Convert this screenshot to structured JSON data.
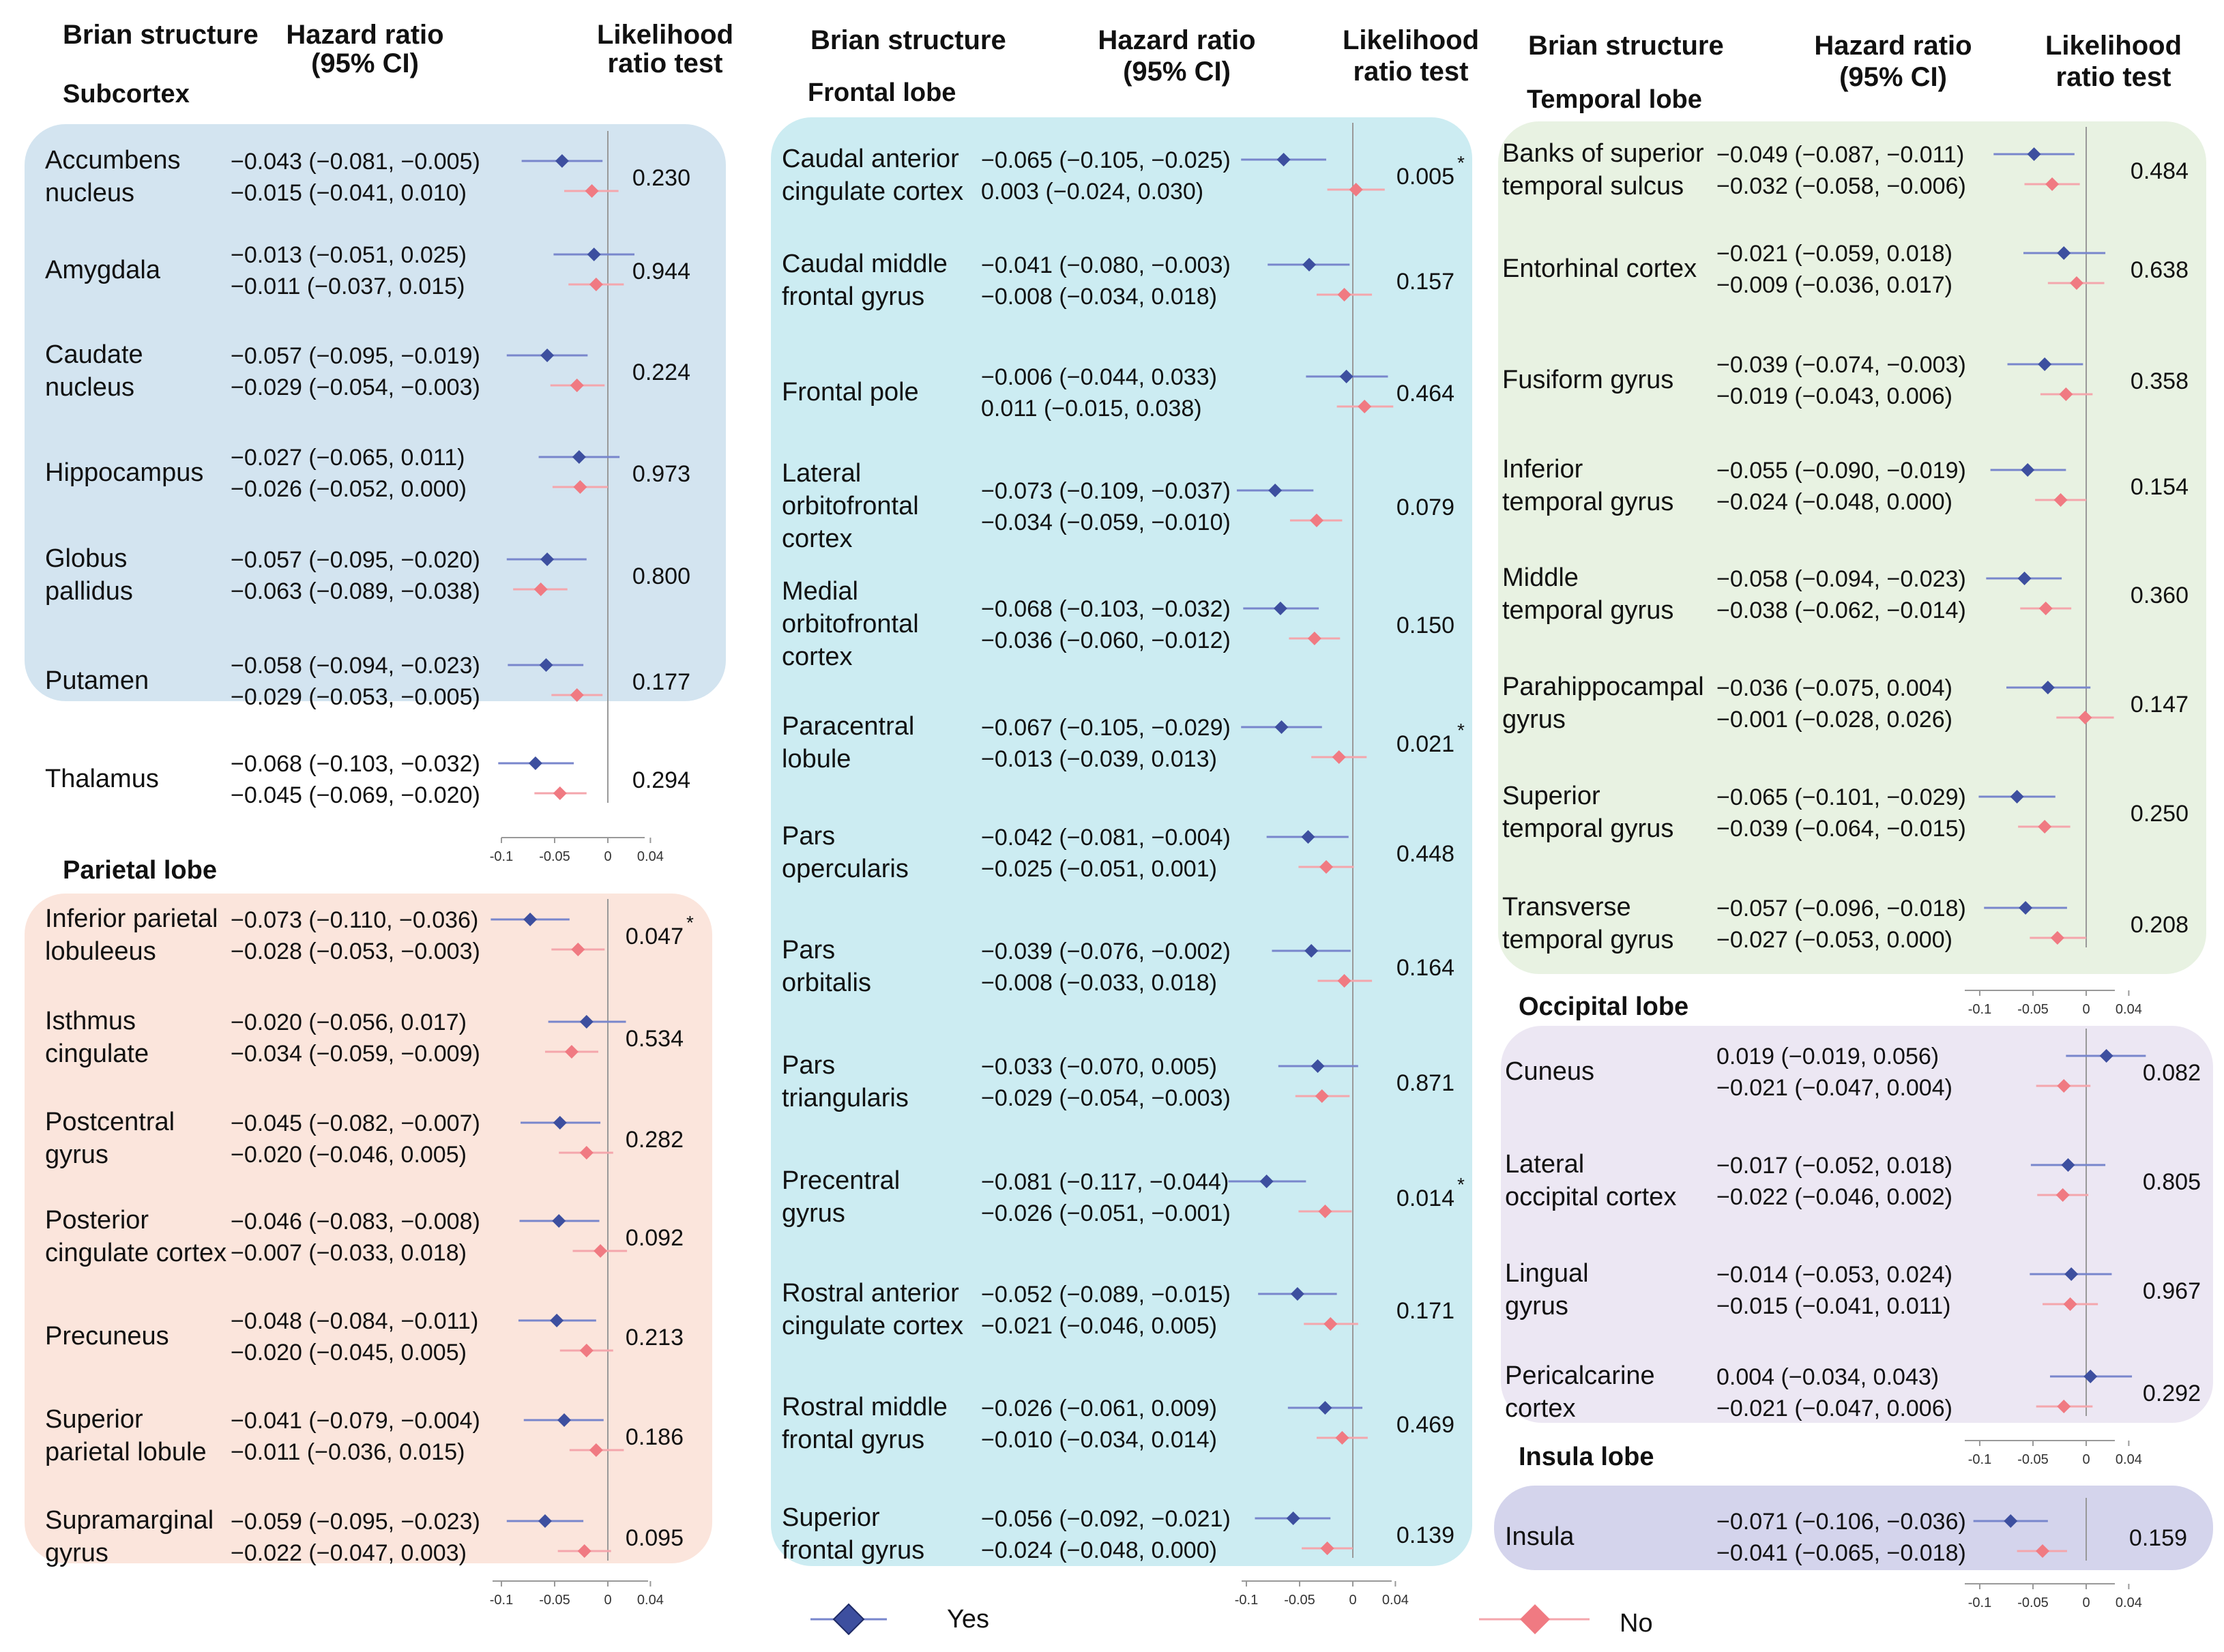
{
  "headers": {
    "structure": "Brian structure",
    "hr_line1": "Hazard ratio",
    "hr_line2": "(95% CI)",
    "lrt_line1": "Likelihood",
    "lrt_line2": "ratio test"
  },
  "legend": {
    "yes": "Yes",
    "no": "No"
  },
  "colors": {
    "yes": "#3d4f9f",
    "yes_line": "#7886cc",
    "no": "#f07a82",
    "no_line": "#f4a6ac",
    "axis": "#999999"
  },
  "axis": {
    "ticks": [
      -0.1,
      -0.05,
      0,
      0.04
    ],
    "tick_labels": [
      "-0.1",
      "-0.05",
      "0",
      "0.04"
    ],
    "range": [
      -0.11,
      0.05
    ]
  },
  "chart_data": {
    "type": "forest",
    "sections": [
      {
        "id": "subcortex",
        "title": "Subcortex",
        "rows": [
          {
            "name": [
              "Accumbens",
              "nucleus"
            ],
            "yes": [
              -0.043,
              -0.081,
              -0.005
            ],
            "no": [
              -0.015,
              -0.041,
              0.01
            ],
            "yes_text": "−0.043 (−0.081, −0.005)",
            "no_text": "−0.015 (−0.041, 0.010)",
            "p": "0.230",
            "star": ""
          },
          {
            "name": [
              "Amygdala"
            ],
            "yes": [
              -0.013,
              -0.051,
              0.025
            ],
            "no": [
              -0.011,
              -0.037,
              0.015
            ],
            "yes_text": "−0.013 (−0.051, 0.025)",
            "no_text": "−0.011 (−0.037, 0.015)",
            "p": "0.944",
            "star": ""
          },
          {
            "name": [
              "Caudate",
              "nucleus"
            ],
            "yes": [
              -0.057,
              -0.095,
              -0.019
            ],
            "no": [
              -0.029,
              -0.054,
              -0.003
            ],
            "yes_text": "−0.057 (−0.095, −0.019)",
            "no_text": "−0.029 (−0.054, −0.003)",
            "p": "0.224",
            "star": ""
          },
          {
            "name": [
              "Hippocampus"
            ],
            "yes": [
              -0.027,
              -0.065,
              0.011
            ],
            "no": [
              -0.026,
              -0.052,
              0.0
            ],
            "yes_text": "−0.027 (−0.065, 0.011)",
            "no_text": "−0.026 (−0.052, 0.000)",
            "p": "0.973",
            "star": ""
          },
          {
            "name": [
              "Globus",
              "pallidus"
            ],
            "yes": [
              -0.057,
              -0.095,
              -0.02
            ],
            "no": [
              -0.063,
              -0.089,
              -0.038
            ],
            "yes_text": "−0.057 (−0.095, −0.020)",
            "no_text": "−0.063 (−0.089, −0.038)",
            "p": "0.800",
            "star": ""
          },
          {
            "name": [
              "Putamen"
            ],
            "yes": [
              -0.058,
              -0.094,
              -0.023
            ],
            "no": [
              -0.029,
              -0.053,
              -0.005
            ],
            "yes_text": "−0.058 (−0.094, −0.023)",
            "no_text": "−0.029 (−0.053, −0.005)",
            "p": "0.177",
            "star": ""
          },
          {
            "name": [
              "Thalamus"
            ],
            "yes": [
              -0.068,
              -0.103,
              -0.032
            ],
            "no": [
              -0.045,
              -0.069,
              -0.02
            ],
            "yes_text": "−0.068 (−0.103, −0.032)",
            "no_text": "−0.045 (−0.069, −0.020)",
            "p": "0.294",
            "star": ""
          }
        ]
      },
      {
        "id": "parietal",
        "title": "Parietal lobe",
        "rows": [
          {
            "name": [
              "Inferior parietal",
              "lobuleeus"
            ],
            "yes": [
              -0.073,
              -0.11,
              -0.036
            ],
            "no": [
              -0.028,
              -0.053,
              -0.003
            ],
            "yes_text": "−0.073 (−0.110, −0.036)",
            "no_text": "−0.028 (−0.053, −0.003)",
            "p": "0.047",
            "star": "*"
          },
          {
            "name": [
              "Isthmus",
              "cingulate"
            ],
            "yes": [
              -0.02,
              -0.056,
              0.017
            ],
            "no": [
              -0.034,
              -0.059,
              -0.009
            ],
            "yes_text": "−0.020 (−0.056, 0.017)",
            "no_text": "−0.034 (−0.059, −0.009)",
            "p": "0.534",
            "star": ""
          },
          {
            "name": [
              "Postcentral",
              "gyrus"
            ],
            "yes": [
              -0.045,
              -0.082,
              -0.007
            ],
            "no": [
              -0.02,
              -0.046,
              0.005
            ],
            "yes_text": "−0.045 (−0.082, −0.007)",
            "no_text": "−0.020 (−0.046, 0.005)",
            "p": "0.282",
            "star": ""
          },
          {
            "name": [
              "Posterior",
              "cingulate cortex"
            ],
            "yes": [
              -0.046,
              -0.083,
              -0.008
            ],
            "no": [
              -0.007,
              -0.033,
              0.018
            ],
            "yes_text": "−0.046 (−0.083, −0.008)",
            "no_text": "−0.007 (−0.033, 0.018)",
            "p": "0.092",
            "star": ""
          },
          {
            "name": [
              "Precuneus"
            ],
            "yes": [
              -0.048,
              -0.084,
              -0.011
            ],
            "no": [
              -0.02,
              -0.045,
              0.005
            ],
            "yes_text": "−0.048 (−0.084, −0.011)",
            "no_text": "−0.020 (−0.045, 0.005)",
            "p": "0.213",
            "star": ""
          },
          {
            "name": [
              "Superior",
              "parietal lobule"
            ],
            "yes": [
              -0.041,
              -0.079,
              -0.004
            ],
            "no": [
              -0.011,
              -0.036,
              0.015
            ],
            "yes_text": "−0.041 (−0.079, −0.004)",
            "no_text": "−0.011 (−0.036, 0.015)",
            "p": "0.186",
            "star": ""
          },
          {
            "name": [
              "Supramarginal",
              "gyrus"
            ],
            "yes": [
              -0.059,
              -0.095,
              -0.023
            ],
            "no": [
              -0.022,
              -0.047,
              0.003
            ],
            "yes_text": "−0.059 (−0.095, −0.023)",
            "no_text": "−0.022 (−0.047, 0.003)",
            "p": "0.095",
            "star": ""
          }
        ]
      },
      {
        "id": "frontal",
        "title": "Frontal lobe",
        "rows": [
          {
            "name": [
              "Caudal anterior",
              "cingulate cortex"
            ],
            "yes": [
              -0.065,
              -0.105,
              -0.025
            ],
            "no": [
              0.003,
              -0.024,
              0.03
            ],
            "yes_text": "−0.065 (−0.105, −0.025)",
            "no_text": "0.003 (−0.024, 0.030)",
            "p": "0.005",
            "star": "*"
          },
          {
            "name": [
              "Caudal middle",
              "frontal gyrus"
            ],
            "yes": [
              -0.041,
              -0.08,
              -0.003
            ],
            "no": [
              -0.008,
              -0.034,
              0.018
            ],
            "yes_text": "−0.041 (−0.080, −0.003)",
            "no_text": "−0.008 (−0.034, 0.018)",
            "p": "0.157",
            "star": ""
          },
          {
            "name": [
              "Frontal pole"
            ],
            "yes": [
              -0.006,
              -0.044,
              0.033
            ],
            "no": [
              0.011,
              -0.015,
              0.038
            ],
            "yes_text": "−0.006 (−0.044, 0.033)",
            "no_text": "0.011 (−0.015, 0.038)",
            "p": "0.464",
            "star": ""
          },
          {
            "name": [
              "Lateral",
              "orbitofrontal",
              "cortex"
            ],
            "yes": [
              -0.073,
              -0.109,
              -0.037
            ],
            "no": [
              -0.034,
              -0.059,
              -0.01
            ],
            "yes_text": "−0.073 (−0.109, −0.037)",
            "no_text": "−0.034 (−0.059, −0.010)",
            "p": "0.079",
            "star": ""
          },
          {
            "name": [
              "Medial",
              "orbitofrontal",
              "cortex"
            ],
            "yes": [
              -0.068,
              -0.103,
              -0.032
            ],
            "no": [
              -0.036,
              -0.06,
              -0.012
            ],
            "yes_text": "−0.068 (−0.103, −0.032)",
            "no_text": "−0.036 (−0.060, −0.012)",
            "p": "0.150",
            "star": ""
          },
          {
            "name": [
              "Paracentral",
              "lobule"
            ],
            "yes": [
              -0.067,
              -0.105,
              -0.029
            ],
            "no": [
              -0.013,
              -0.039,
              0.013
            ],
            "yes_text": "−0.067 (−0.105, −0.029)",
            "no_text": "−0.013 (−0.039, 0.013)",
            "p": "0.021",
            "star": "*"
          },
          {
            "name": [
              "Pars",
              "opercularis"
            ],
            "yes": [
              -0.042,
              -0.081,
              -0.004
            ],
            "no": [
              -0.025,
              -0.051,
              0.001
            ],
            "yes_text": "−0.042 (−0.081, −0.004)",
            "no_text": "−0.025 (−0.051, 0.001)",
            "p": "0.448",
            "star": ""
          },
          {
            "name": [
              "Pars",
              "orbitalis"
            ],
            "yes": [
              -0.039,
              -0.076,
              -0.002
            ],
            "no": [
              -0.008,
              -0.033,
              0.018
            ],
            "yes_text": "−0.039 (−0.076, −0.002)",
            "no_text": "−0.008 (−0.033, 0.018)",
            "p": "0.164",
            "star": ""
          },
          {
            "name": [
              "Pars",
              "triangularis"
            ],
            "yes": [
              -0.033,
              -0.07,
              0.005
            ],
            "no": [
              -0.029,
              -0.054,
              -0.003
            ],
            "yes_text": "−0.033 (−0.070, 0.005)",
            "no_text": "−0.029 (−0.054, −0.003)",
            "p": "0.871",
            "star": ""
          },
          {
            "name": [
              "Precentral",
              "gyrus"
            ],
            "yes": [
              -0.081,
              -0.117,
              -0.044
            ],
            "no": [
              -0.026,
              -0.051,
              -0.001
            ],
            "yes_text": "−0.081 (−0.117, −0.044)",
            "no_text": "−0.026 (−0.051, −0.001)",
            "p": "0.014",
            "star": "*"
          },
          {
            "name": [
              "Rostral anterior",
              "cingulate cortex"
            ],
            "yes": [
              -0.052,
              -0.089,
              -0.015
            ],
            "no": [
              -0.021,
              -0.046,
              0.005
            ],
            "yes_text": "−0.052 (−0.089, −0.015)",
            "no_text": "−0.021 (−0.046, 0.005)",
            "p": "0.171",
            "star": ""
          },
          {
            "name": [
              "Rostral middle",
              "frontal gyrus"
            ],
            "yes": [
              -0.026,
              -0.061,
              0.009
            ],
            "no": [
              -0.01,
              -0.034,
              0.014
            ],
            "yes_text": "−0.026 (−0.061, 0.009)",
            "no_text": "−0.010 (−0.034, 0.014)",
            "p": "0.469",
            "star": ""
          },
          {
            "name": [
              "Superior",
              "frontal gyrus"
            ],
            "yes": [
              -0.056,
              -0.092,
              -0.021
            ],
            "no": [
              -0.024,
              -0.048,
              0.0
            ],
            "yes_text": "−0.056 (−0.092, −0.021)",
            "no_text": "−0.024 (−0.048, 0.000)",
            "p": "0.139",
            "star": ""
          }
        ]
      },
      {
        "id": "temporal",
        "title": "Temporal lobe",
        "rows": [
          {
            "name": [
              "Banks of superior",
              "temporal sulcus"
            ],
            "yes": [
              -0.049,
              -0.087,
              -0.011
            ],
            "no": [
              -0.032,
              -0.058,
              -0.006
            ],
            "yes_text": "−0.049 (−0.087, −0.011)",
            "no_text": "−0.032 (−0.058, −0.006)",
            "p": "0.484",
            "star": ""
          },
          {
            "name": [
              "Entorhinal cortex"
            ],
            "yes": [
              -0.021,
              -0.059,
              0.018
            ],
            "no": [
              -0.009,
              -0.036,
              0.017
            ],
            "yes_text": "−0.021 (−0.059, 0.018)",
            "no_text": "−0.009 (−0.036, 0.017)",
            "p": "0.638",
            "star": ""
          },
          {
            "name": [
              "Fusiform gyrus"
            ],
            "yes": [
              -0.039,
              -0.074,
              -0.003
            ],
            "no": [
              -0.019,
              -0.043,
              0.006
            ],
            "yes_text": "−0.039 (−0.074, −0.003)",
            "no_text": "−0.019 (−0.043, 0.006)",
            "p": "0.358",
            "star": ""
          },
          {
            "name": [
              "Inferior",
              "temporal gyrus"
            ],
            "yes": [
              -0.055,
              -0.09,
              -0.019
            ],
            "no": [
              -0.024,
              -0.048,
              0.0
            ],
            "yes_text": "−0.055 (−0.090, −0.019)",
            "no_text": "−0.024 (−0.048, 0.000)",
            "p": "0.154",
            "star": ""
          },
          {
            "name": [
              "Middle",
              "temporal gyrus"
            ],
            "yes": [
              -0.058,
              -0.094,
              -0.023
            ],
            "no": [
              -0.038,
              -0.062,
              -0.014
            ],
            "yes_text": "−0.058 (−0.094, −0.023)",
            "no_text": "−0.038 (−0.062, −0.014)",
            "p": "0.360",
            "star": ""
          },
          {
            "name": [
              "Parahippocampal",
              "gyrus"
            ],
            "yes": [
              -0.036,
              -0.075,
              0.004
            ],
            "no": [
              -0.001,
              -0.028,
              0.026
            ],
            "yes_text": "−0.036 (−0.075, 0.004)",
            "no_text": "−0.001 (−0.028, 0.026)",
            "p": "0.147",
            "star": ""
          },
          {
            "name": [
              "Superior",
              "temporal gyrus"
            ],
            "yes": [
              -0.065,
              -0.101,
              -0.029
            ],
            "no": [
              -0.039,
              -0.064,
              -0.015
            ],
            "yes_text": "−0.065 (−0.101, −0.029)",
            "no_text": "−0.039 (−0.064, −0.015)",
            "p": "0.250",
            "star": ""
          },
          {
            "name": [
              "Transverse",
              "temporal gyrus"
            ],
            "yes": [
              -0.057,
              -0.096,
              -0.018
            ],
            "no": [
              -0.027,
              -0.053,
              0.0
            ],
            "yes_text": "−0.057 (−0.096, −0.018)",
            "no_text": "−0.027 (−0.053, 0.000)",
            "p": "0.208",
            "star": ""
          }
        ]
      },
      {
        "id": "occipital",
        "title": "Occipital lobe",
        "rows": [
          {
            "name": [
              "Cuneus"
            ],
            "yes": [
              0.019,
              -0.019,
              0.056
            ],
            "no": [
              -0.021,
              -0.047,
              0.004
            ],
            "yes_text": "0.019 (−0.019, 0.056)",
            "no_text": "−0.021 (−0.047, 0.004)",
            "p": "0.082",
            "star": ""
          },
          {
            "name": [
              "Lateral",
              "occipital cortex"
            ],
            "yes": [
              -0.017,
              -0.052,
              0.018
            ],
            "no": [
              -0.022,
              -0.046,
              0.002
            ],
            "yes_text": "−0.017 (−0.052, 0.018)",
            "no_text": "−0.022 (−0.046, 0.002)",
            "p": "0.805",
            "star": ""
          },
          {
            "name": [
              "Lingual",
              "gyrus"
            ],
            "yes": [
              -0.014,
              -0.053,
              0.024
            ],
            "no": [
              -0.015,
              -0.041,
              0.011
            ],
            "yes_text": "−0.014 (−0.053, 0.024)",
            "no_text": "−0.015 (−0.041, 0.011)",
            "p": "0.967",
            "star": ""
          },
          {
            "name": [
              "Pericalcarine",
              "cortex"
            ],
            "yes": [
              0.004,
              -0.034,
              0.043
            ],
            "no": [
              -0.021,
              -0.047,
              0.006
            ],
            "yes_text": "0.004 (−0.034, 0.043)",
            "no_text": "−0.021 (−0.047, 0.006)",
            "p": "0.292",
            "star": ""
          }
        ]
      },
      {
        "id": "insula",
        "title": "Insula lobe",
        "rows": [
          {
            "name": [
              "Insula"
            ],
            "yes": [
              -0.071,
              -0.106,
              -0.036
            ],
            "no": [
              -0.041,
              -0.065,
              -0.018
            ],
            "yes_text": "−0.071 (−0.106, −0.036)",
            "no_text": "−0.041 (−0.065, −0.018)",
            "p": "0.159",
            "star": ""
          }
        ]
      }
    ]
  }
}
